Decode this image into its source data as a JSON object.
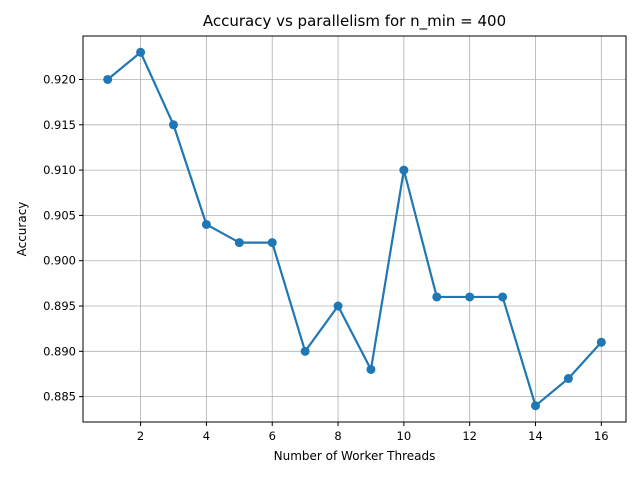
{
  "chart_data": {
    "type": "line",
    "title": "Accuracy vs parallelism for n_min = 400",
    "xlabel": "Number of Worker Threads",
    "ylabel": "Accuracy",
    "xlim": [
      0.25,
      16.75
    ],
    "ylim": [
      0.8822,
      0.9248
    ],
    "xticks": [
      2,
      4,
      6,
      8,
      10,
      12,
      14,
      16
    ],
    "xtick_labels": [
      "2",
      "4",
      "6",
      "8",
      "10",
      "12",
      "14",
      "16"
    ],
    "yticks": [
      0.885,
      0.89,
      0.895,
      0.9,
      0.905,
      0.91,
      0.915,
      0.92
    ],
    "ytick_labels": [
      "0.885",
      "0.890",
      "0.895",
      "0.900",
      "0.905",
      "0.910",
      "0.915",
      "0.920"
    ],
    "grid": true,
    "series": [
      {
        "color": "#1f77b4",
        "marker": "circle",
        "x": [
          1,
          2,
          3,
          4,
          5,
          6,
          7,
          8,
          9,
          10,
          11,
          12,
          13,
          14,
          15,
          16
        ],
        "y": [
          0.92,
          0.923,
          0.915,
          0.904,
          0.902,
          0.902,
          0.89,
          0.895,
          0.888,
          0.91,
          0.896,
          0.896,
          0.896,
          0.884,
          0.887,
          0.891
        ]
      }
    ]
  }
}
